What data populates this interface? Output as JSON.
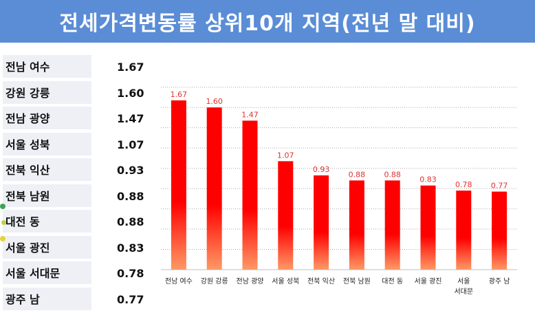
{
  "title": "전세가격변동률 상위10개 지역(전년 말 대비)",
  "table": {
    "rows": [
      {
        "region": "전남 여수",
        "value": "1.67"
      },
      {
        "region": "강원 강릉",
        "value": "1.60"
      },
      {
        "region": "전남 광양",
        "value": "1.47"
      },
      {
        "region": "서울 성북",
        "value": "1.07"
      },
      {
        "region": "전북 익산",
        "value": "0.93"
      },
      {
        "region": "전북 남원",
        "value": "0.88"
      },
      {
        "region": "대전 동",
        "value": "0.88"
      },
      {
        "region": "서울 광진",
        "value": "0.83"
      },
      {
        "region": "서울 서대문",
        "value": "0.78"
      },
      {
        "region": "광주 남",
        "value": "0.77"
      }
    ]
  },
  "chart_data": {
    "type": "bar",
    "categories": [
      "전남 여수",
      "강원 강릉",
      "전남 광양",
      "서울 성북",
      "전북 익산",
      "전북 남원",
      "대전 동",
      "서울 광진",
      "서울 서대문",
      "광주 남"
    ],
    "category_label_lines": [
      [
        "전남 여수"
      ],
      [
        "강원 강릉"
      ],
      [
        "전남 광양"
      ],
      [
        "서울 성북"
      ],
      [
        "전북 익산"
      ],
      [
        "전북 남원"
      ],
      [
        "대전 동"
      ],
      [
        "서울 광진"
      ],
      [
        "서울",
        "서대문"
      ],
      [
        "광주 남"
      ]
    ],
    "values": [
      1.67,
      1.6,
      1.47,
      1.07,
      0.93,
      0.88,
      0.88,
      0.83,
      0.78,
      0.77
    ],
    "data_labels": [
      "1.67",
      "1.60",
      "1.47",
      "1.07",
      "0.93",
      "0.88",
      "0.88",
      "0.83",
      "0.78",
      "0.77"
    ],
    "ylim": [
      0,
      1.9
    ],
    "grid": true,
    "bar_gradient": {
      "top": "#ff0000",
      "bottom": "#ff9966"
    },
    "label_color": "#e03030"
  },
  "colors": {
    "title_bg": "#5b8dd6",
    "row_bg": "#eef0f6"
  }
}
